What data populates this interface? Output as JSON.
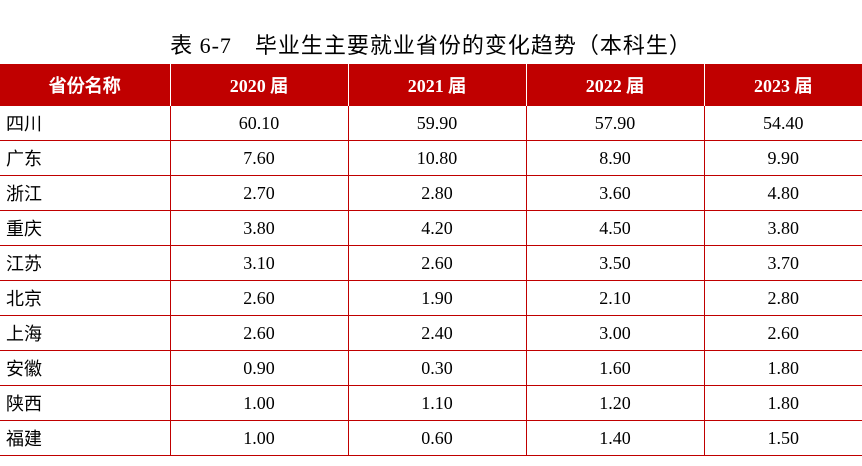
{
  "title": "表 6-7　毕业生主要就业省份的变化趋势（本科生）",
  "table": {
    "header": [
      "省份名称",
      "2020 届",
      "2021 届",
      "2022 届",
      "2023 届"
    ],
    "rows": [
      [
        "四川",
        "60.10",
        "59.90",
        "57.90",
        "54.40"
      ],
      [
        "广东",
        "7.60",
        "10.80",
        "8.90",
        "9.90"
      ],
      [
        "浙江",
        "2.70",
        "2.80",
        "3.60",
        "4.80"
      ],
      [
        "重庆",
        "3.80",
        "4.20",
        "4.50",
        "3.80"
      ],
      [
        "江苏",
        "3.10",
        "2.60",
        "3.50",
        "3.70"
      ],
      [
        "北京",
        "2.60",
        "1.90",
        "2.10",
        "2.80"
      ],
      [
        "上海",
        "2.60",
        "2.40",
        "3.00",
        "2.60"
      ],
      [
        "安徽",
        "0.90",
        "0.30",
        "1.60",
        "1.80"
      ],
      [
        "陕西",
        "1.00",
        "1.10",
        "1.20",
        "1.80"
      ],
      [
        "福建",
        "1.00",
        "0.60",
        "1.40",
        "1.50"
      ]
    ]
  }
}
